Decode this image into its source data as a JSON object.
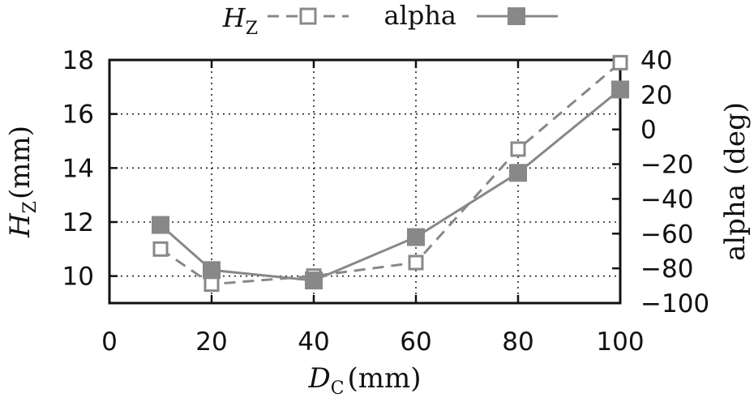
{
  "chart_data": {
    "type": "line",
    "x": [
      10,
      20,
      40,
      60,
      80,
      100
    ],
    "xlim": [
      0,
      100
    ],
    "x_ticks": [
      "0",
      "20",
      "40",
      "60",
      "80",
      "100"
    ],
    "xlabel": {
      "main": "D",
      "sub": "C",
      "unit": "(mm)"
    },
    "ylabel_left": {
      "main": "H",
      "sub": "Z",
      "unit": "(mm)"
    },
    "ylabel_right": "alpha (deg)",
    "ylim_left": [
      9,
      18
    ],
    "ylim_right": [
      -100,
      40
    ],
    "y_ticks_left": [
      "10",
      "12",
      "14",
      "16",
      "18"
    ],
    "y_ticks_right": [
      "−100",
      "−80",
      "−60",
      "−40",
      "−20",
      "0",
      "20",
      "40"
    ],
    "grid": true,
    "legend_position": "top",
    "series": [
      {
        "name": "H",
        "name_sub": "Z",
        "axis": "left",
        "style": "dashed",
        "marker": "open-square",
        "color": "#888888",
        "values": [
          11.0,
          9.7,
          10.0,
          10.5,
          14.7,
          17.9
        ]
      },
      {
        "name": "alpha",
        "axis": "right",
        "style": "solid",
        "marker": "filled-square",
        "color": "#888888",
        "values": [
          -55,
          -81,
          -87,
          -62,
          -25,
          23
        ]
      }
    ]
  }
}
